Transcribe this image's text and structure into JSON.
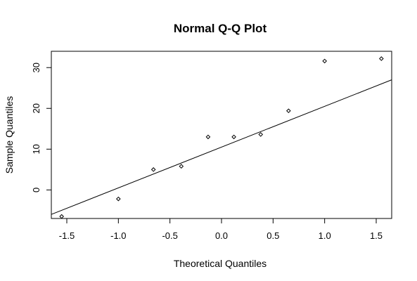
{
  "chart_data": {
    "type": "scatter",
    "title": "Normal Q-Q Plot",
    "xlabel": "Theoretical Quantiles",
    "ylabel": "Sample Quantiles",
    "xlim": [
      -1.65,
      1.65
    ],
    "ylim": [
      -7,
      34
    ],
    "x_ticks": [
      -1.5,
      -1.0,
      -0.5,
      0.0,
      0.5,
      1.0,
      1.5
    ],
    "x_tick_labels": [
      "-1.5",
      "-1.0",
      "-0.5",
      "0.0",
      "0.5",
      "1.0",
      "1.5"
    ],
    "y_ticks": [
      0,
      10,
      20,
      30
    ],
    "y_tick_labels": [
      "0",
      "10",
      "20",
      "30"
    ],
    "grid": false,
    "points": [
      {
        "x": -1.55,
        "y": -6.5
      },
      {
        "x": -1.0,
        "y": -2.2
      },
      {
        "x": -0.66,
        "y": 5.0
      },
      {
        "x": -0.39,
        "y": 5.8
      },
      {
        "x": -0.13,
        "y": 13.0
      },
      {
        "x": 0.12,
        "y": 13.0
      },
      {
        "x": 0.38,
        "y": 13.6
      },
      {
        "x": 0.65,
        "y": 19.4
      },
      {
        "x": 1.0,
        "y": 31.6
      },
      {
        "x": 1.55,
        "y": 32.2
      }
    ],
    "reference_line": {
      "slope": 10.0,
      "intercept": 10.5
    }
  }
}
